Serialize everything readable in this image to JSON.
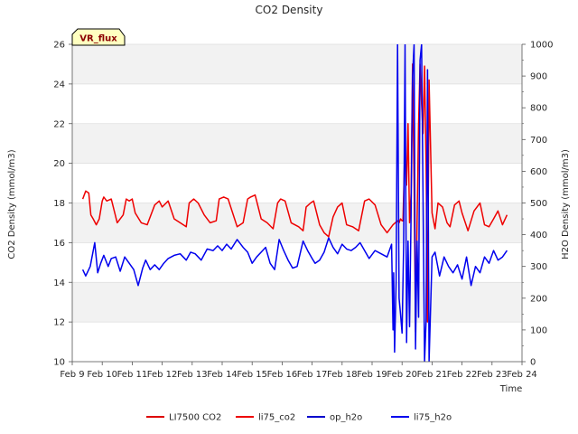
{
  "chart_data": {
    "type": "line",
    "title": "CO2 Density",
    "xlabel": "Time",
    "ylabel_left": "CO2 Density (mmol/m3)",
    "ylabel_right": "H2O Density (mmol/m3)",
    "badge": "VR_flux",
    "xlim": [
      9,
      24
    ],
    "x_ticks": [
      9,
      10,
      11,
      12,
      13,
      14,
      15,
      16,
      17,
      18,
      19,
      20,
      21,
      22,
      23,
      24
    ],
    "x_tick_labels": [
      "Feb 9",
      "Feb 10",
      "Feb 11",
      "Feb 12",
      "Feb 13",
      "Feb 14",
      "Feb 15",
      "Feb 16",
      "Feb 17",
      "Feb 18",
      "Feb 19",
      "Feb 20",
      "Feb 21",
      "Feb 22",
      "Feb 23",
      "Feb 24"
    ],
    "ylim_left": [
      10,
      26
    ],
    "y_ticks_left": [
      "10",
      "12",
      "14",
      "16",
      "18",
      "20",
      "22",
      "24",
      "26"
    ],
    "ylim_right": [
      0,
      1000
    ],
    "y_ticks_right": [
      "0",
      "100",
      "200",
      "300",
      "400",
      "500",
      "600",
      "700",
      "800",
      "900",
      "1000"
    ],
    "grid": true,
    "legend_position": "bottom-center",
    "series": [
      {
        "name": "LI7500 CO2",
        "color": "#dd0000",
        "axis": "left",
        "x": [],
        "y": []
      },
      {
        "name": "li75_co2",
        "color": "#ee0000",
        "axis": "left",
        "x": [
          9.35,
          9.45,
          9.55,
          9.62,
          9.7,
          9.8,
          9.9,
          10.0,
          10.05,
          10.15,
          10.3,
          10.5,
          10.7,
          10.8,
          10.9,
          11.0,
          11.1,
          11.3,
          11.5,
          11.75,
          11.9,
          12.0,
          12.2,
          12.4,
          12.6,
          12.8,
          12.9,
          13.05,
          13.2,
          13.4,
          13.6,
          13.8,
          13.9,
          14.05,
          14.2,
          14.5,
          14.7,
          14.85,
          14.95,
          15.1,
          15.3,
          15.5,
          15.7,
          15.85,
          15.95,
          16.1,
          16.3,
          16.55,
          16.7,
          16.8,
          16.95,
          17.05,
          17.25,
          17.4,
          17.55,
          17.7,
          17.85,
          18.0,
          18.15,
          18.35,
          18.55,
          18.75,
          18.9,
          19.1,
          19.3,
          19.5,
          19.7,
          19.85,
          19.9,
          19.95,
          20.0,
          20.03,
          20.06,
          20.1,
          20.12,
          20.15,
          20.2,
          20.25,
          20.3,
          20.35,
          20.4,
          20.45,
          20.5,
          20.55,
          20.6,
          20.65,
          20.7,
          20.75,
          20.8,
          20.85,
          20.9,
          21.0,
          21.1,
          21.2,
          21.35,
          21.5,
          21.6,
          21.75,
          21.9,
          22.0,
          22.2,
          22.4,
          22.6,
          22.75,
          22.9,
          23.05,
          23.2,
          23.35,
          23.5
        ],
        "y": [
          18.2,
          18.6,
          18.5,
          17.4,
          17.2,
          16.9,
          17.2,
          18.1,
          18.3,
          18.1,
          18.2,
          17.0,
          17.4,
          18.2,
          18.1,
          18.2,
          17.5,
          17.0,
          16.9,
          17.9,
          18.1,
          17.8,
          18.1,
          17.2,
          17.0,
          16.8,
          18.0,
          18.2,
          18.0,
          17.4,
          17.0,
          17.1,
          18.2,
          18.3,
          18.2,
          16.8,
          17.0,
          18.2,
          18.3,
          18.4,
          17.2,
          17.0,
          16.7,
          18.0,
          18.2,
          18.1,
          17.0,
          16.8,
          16.6,
          17.8,
          18.0,
          18.1,
          16.9,
          16.5,
          16.3,
          17.3,
          17.8,
          18.0,
          16.9,
          16.8,
          16.6,
          18.1,
          18.2,
          17.9,
          16.9,
          16.5,
          16.9,
          17.1,
          17.0,
          17.2,
          17.1,
          17.1,
          18.8,
          21.5,
          19.8,
          18.9,
          22.0,
          17.0,
          18.5,
          25.0,
          19.0,
          11.5,
          17.0,
          22.0,
          25.0,
          23.0,
          21.5,
          24.9,
          20.0,
          12.0,
          24.2,
          17.5,
          16.7,
          18.0,
          17.8,
          17.0,
          16.8,
          17.9,
          18.1,
          17.5,
          16.6,
          17.6,
          18.0,
          16.9,
          16.8,
          17.2,
          17.6,
          16.9,
          17.4
        ],
        "linewidth": 1.5
      },
      {
        "name": "op_h2o",
        "color": "#0000cc",
        "axis": "right",
        "x": [],
        "y": []
      },
      {
        "name": "li75_h2o",
        "color": "#0000ee",
        "axis": "right",
        "x": [
          9.35,
          9.45,
          9.6,
          9.75,
          9.85,
          9.95,
          10.05,
          10.2,
          10.3,
          10.45,
          10.6,
          10.75,
          10.9,
          11.05,
          11.2,
          11.35,
          11.45,
          11.6,
          11.75,
          11.9,
          12.05,
          12.2,
          12.4,
          12.6,
          12.8,
          12.95,
          13.1,
          13.3,
          13.5,
          13.7,
          13.85,
          14.0,
          14.15,
          14.3,
          14.5,
          14.7,
          14.85,
          15.0,
          15.15,
          15.3,
          15.45,
          15.6,
          15.75,
          15.9,
          16.05,
          16.2,
          16.35,
          16.5,
          16.7,
          16.85,
          17.0,
          17.1,
          17.25,
          17.4,
          17.55,
          17.7,
          17.85,
          18.0,
          18.15,
          18.3,
          18.45,
          18.6,
          18.75,
          18.9,
          19.1,
          19.3,
          19.5,
          19.65,
          19.7,
          19.72,
          19.75,
          19.8,
          19.85,
          19.9,
          19.95,
          20.0,
          20.05,
          20.1,
          20.15,
          20.2,
          20.25,
          20.3,
          20.35,
          20.4,
          20.45,
          20.5,
          20.55,
          20.6,
          20.65,
          20.7,
          20.75,
          20.8,
          20.85,
          20.9,
          21.0,
          21.1,
          21.25,
          21.4,
          21.55,
          21.7,
          21.85,
          22.0,
          22.15,
          22.3,
          22.45,
          22.6,
          22.75,
          22.9,
          23.05,
          23.2,
          23.35,
          23.5
        ],
        "y": [
          290,
          270,
          300,
          375,
          280,
          310,
          335,
          300,
          325,
          330,
          285,
          330,
          310,
          290,
          240,
          295,
          320,
          290,
          305,
          290,
          310,
          325,
          335,
          340,
          320,
          345,
          340,
          320,
          355,
          350,
          365,
          350,
          370,
          355,
          385,
          360,
          345,
          310,
          330,
          345,
          360,
          310,
          290,
          385,
          350,
          320,
          295,
          300,
          380,
          350,
          325,
          310,
          320,
          345,
          390,
          360,
          340,
          370,
          355,
          350,
          360,
          375,
          350,
          325,
          350,
          340,
          330,
          370,
          100,
          280,
          30,
          250,
          1000,
          200,
          150,
          90,
          360,
          1000,
          60,
          380,
          110,
          470,
          900,
          1000,
          40,
          380,
          140,
          950,
          1000,
          520,
          0,
          130,
          920,
          0,
          330,
          345,
          270,
          330,
          300,
          280,
          305,
          260,
          330,
          240,
          300,
          280,
          330,
          310,
          350,
          320,
          330,
          350
        ],
        "linewidth": 1.5
      }
    ]
  }
}
